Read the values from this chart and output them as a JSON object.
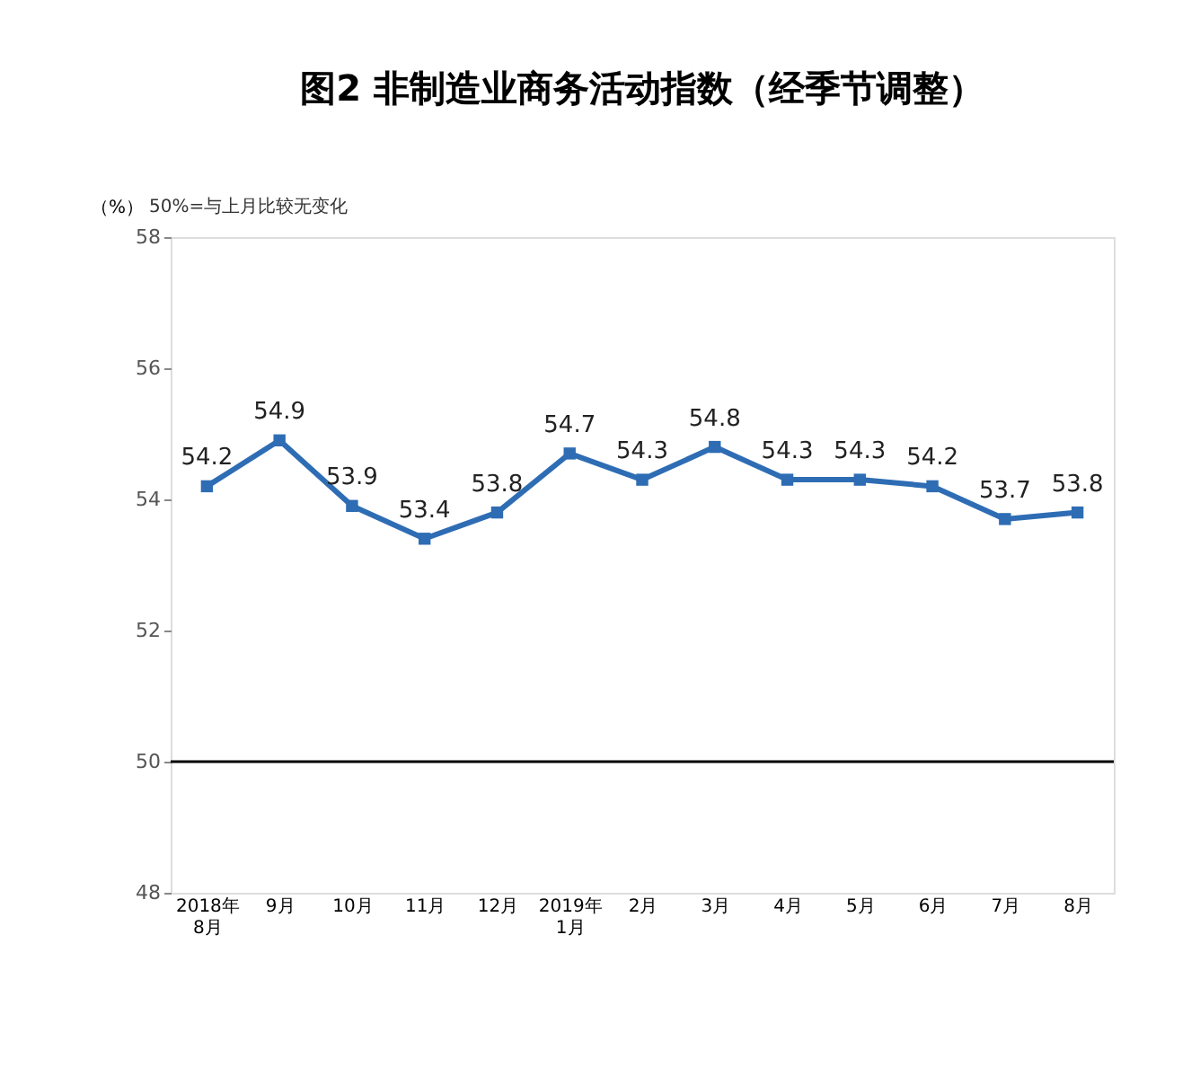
{
  "chart_data": {
    "type": "line",
    "title": "图2 非制造业商务活动指数（经季节调整）",
    "ylabel": "（%）",
    "annotations": [
      "50%=与上月比较无变化"
    ],
    "categories": [
      "2018年8月",
      "9月",
      "10月",
      "11月",
      "12月",
      "2019年1月",
      "2月",
      "3月",
      "4月",
      "5月",
      "6月",
      "7月",
      "8月"
    ],
    "series": [
      {
        "color": "#2e6db4",
        "values": [
          54.2,
          54.9,
          53.9,
          53.4,
          53.8,
          54.7,
          54.3,
          54.8,
          54.3,
          54.3,
          54.2,
          53.7,
          53.8
        ]
      }
    ],
    "ylim": [
      48,
      58
    ],
    "yticks": [
      48,
      50,
      52,
      54,
      56,
      58
    ],
    "ref_lines": [
      {
        "axis": "y",
        "value": 50,
        "label": null,
        "color": "#000000"
      }
    ],
    "data_labels": true,
    "marker": "square",
    "line_style": "solid",
    "grid": false
  }
}
